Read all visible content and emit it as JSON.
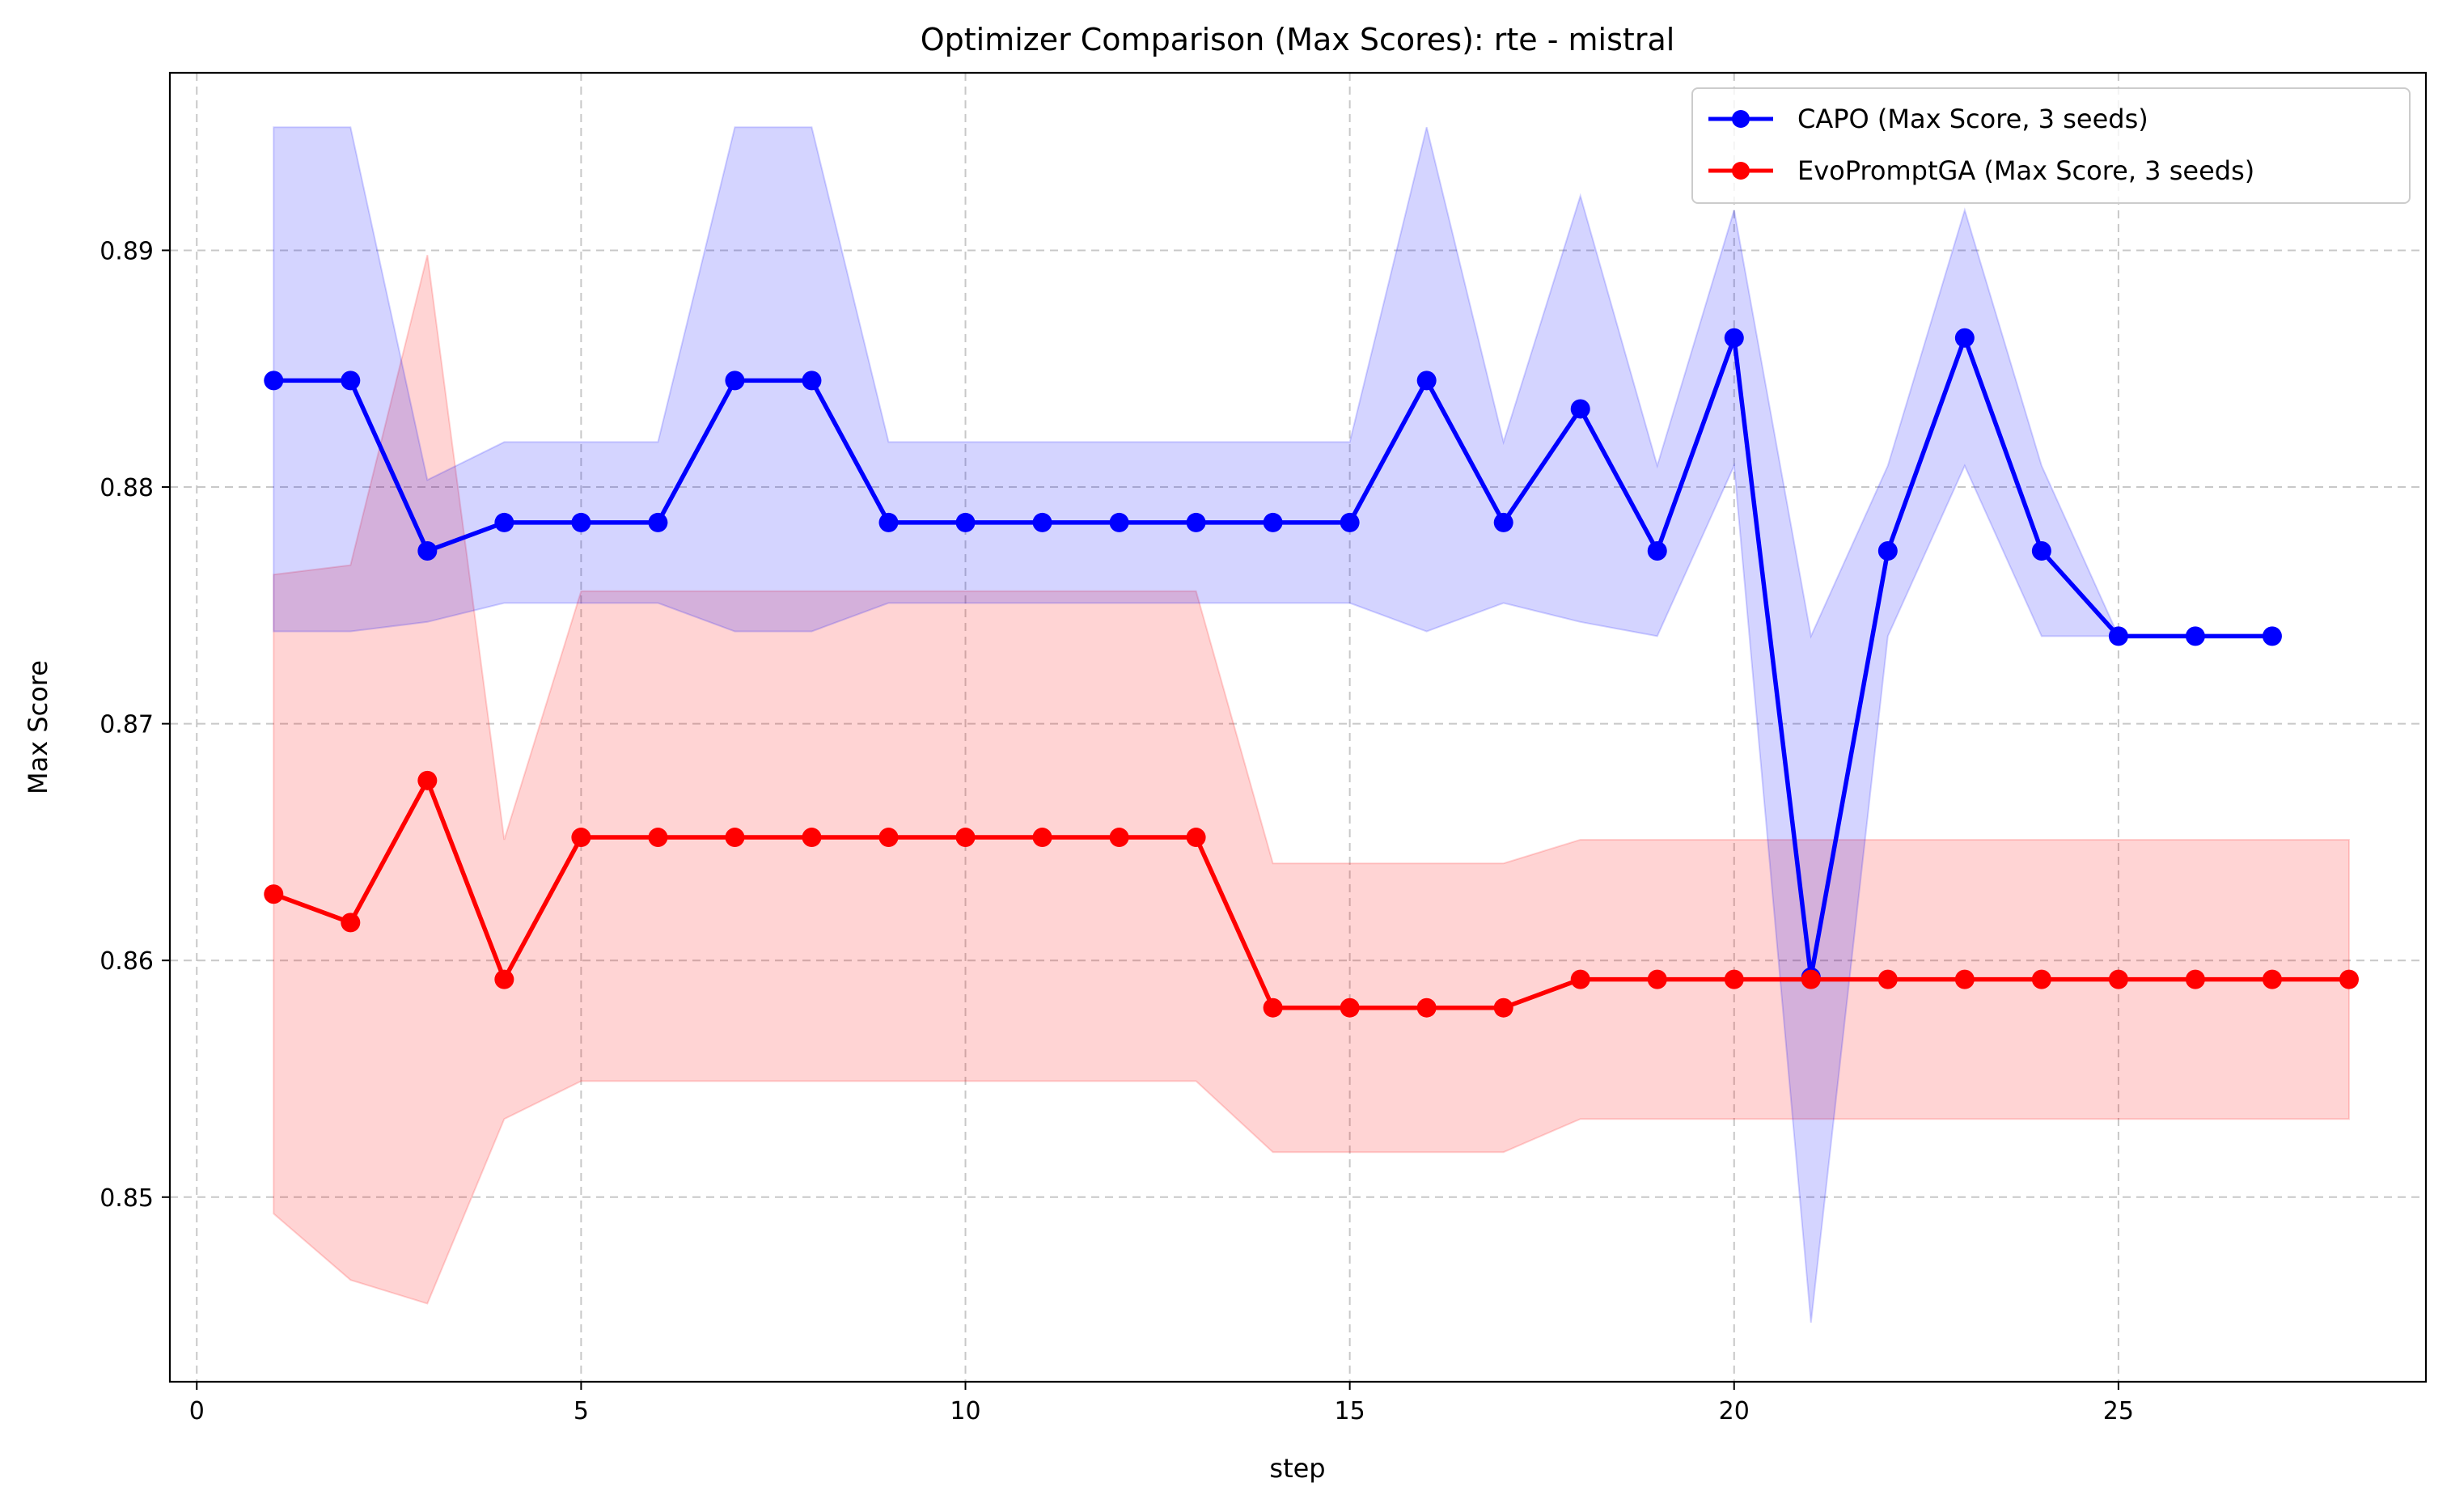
{
  "chart_data": {
    "type": "line",
    "title": "Optimizer Comparison (Max Scores): rte - mistral",
    "xlabel": "step",
    "ylabel": "Max Score",
    "xlim": [
      -0.35,
      29.0
    ],
    "ylim": [
      0.8422,
      0.8975
    ],
    "xticks": [
      0,
      5,
      10,
      15,
      20,
      25
    ],
    "yticks": [
      0.85,
      0.86,
      0.87,
      0.88,
      0.89
    ],
    "ytick_labels": [
      "0.85",
      "0.86",
      "0.87",
      "0.88",
      "0.89"
    ],
    "grid": true,
    "legend_position": "top-right",
    "series": [
      {
        "name": "CAPO (Max Score, 3 seeds)",
        "color": "#0000ff",
        "band_color": "#0000ff",
        "x": [
          1,
          2,
          3,
          4,
          5,
          6,
          7,
          8,
          9,
          10,
          11,
          12,
          13,
          14,
          15,
          16,
          17,
          18,
          19,
          20,
          21,
          22,
          23,
          24,
          25,
          26,
          27
        ],
        "y": [
          0.8845,
          0.8845,
          0.8773,
          0.8785,
          0.8785,
          0.8785,
          0.8845,
          0.8845,
          0.8785,
          0.8785,
          0.8785,
          0.8785,
          0.8785,
          0.8785,
          0.8785,
          0.8845,
          0.8785,
          0.8833,
          0.8773,
          0.8863,
          0.8593,
          0.8773,
          0.8863,
          0.8773,
          0.8737,
          0.8737,
          0.8737
        ],
        "upper": [
          0.8952,
          0.8952,
          0.8803,
          0.8819,
          0.8819,
          0.8819,
          0.8952,
          0.8952,
          0.8819,
          0.8819,
          0.8819,
          0.8819,
          0.8819,
          0.8819,
          0.8819,
          0.8952,
          0.8819,
          0.8923,
          0.8809,
          0.8917,
          0.8737,
          0.8809,
          0.8917,
          0.8809,
          0.8737,
          0.8737,
          0.8737
        ],
        "lower": [
          0.8739,
          0.8739,
          0.8743,
          0.8751,
          0.8751,
          0.8751,
          0.8739,
          0.8739,
          0.8751,
          0.8751,
          0.8751,
          0.8751,
          0.8751,
          0.8751,
          0.8751,
          0.8739,
          0.8751,
          0.8743,
          0.8737,
          0.8809,
          0.8447,
          0.8737,
          0.8809,
          0.8737,
          0.8737,
          0.8737,
          0.8737
        ]
      },
      {
        "name": "EvoPromptGA (Max Score, 3 seeds)",
        "color": "#ff0000",
        "band_color": "#ff0000",
        "x": [
          1,
          2,
          3,
          4,
          5,
          6,
          7,
          8,
          9,
          10,
          11,
          12,
          13,
          14,
          15,
          16,
          17,
          18,
          19,
          20,
          21,
          22,
          23,
          24,
          25,
          26,
          27,
          28
        ],
        "y": [
          0.8628,
          0.8616,
          0.8676,
          0.8592,
          0.8652,
          0.8652,
          0.8652,
          0.8652,
          0.8652,
          0.8652,
          0.8652,
          0.8652,
          0.8652,
          0.858,
          0.858,
          0.858,
          0.858,
          0.8592,
          0.8592,
          0.8592,
          0.8592,
          0.8592,
          0.8592,
          0.8592,
          0.8592,
          0.8592,
          0.8592,
          0.8592
        ],
        "upper": [
          0.8763,
          0.8767,
          0.8898,
          0.8651,
          0.8756,
          0.8756,
          0.8756,
          0.8756,
          0.8756,
          0.8756,
          0.8756,
          0.8756,
          0.8756,
          0.8641,
          0.8641,
          0.8641,
          0.8641,
          0.8651,
          0.8651,
          0.8651,
          0.8651,
          0.8651,
          0.8651,
          0.8651,
          0.8651,
          0.8651,
          0.8651,
          0.8651
        ],
        "lower": [
          0.8493,
          0.8465,
          0.8455,
          0.8533,
          0.8549,
          0.8549,
          0.8549,
          0.8549,
          0.8549,
          0.8549,
          0.8549,
          0.8549,
          0.8549,
          0.8519,
          0.8519,
          0.8519,
          0.8519,
          0.8533,
          0.8533,
          0.8533,
          0.8533,
          0.8533,
          0.8533,
          0.8533,
          0.8533,
          0.8533,
          0.8533,
          0.8533
        ]
      }
    ]
  }
}
